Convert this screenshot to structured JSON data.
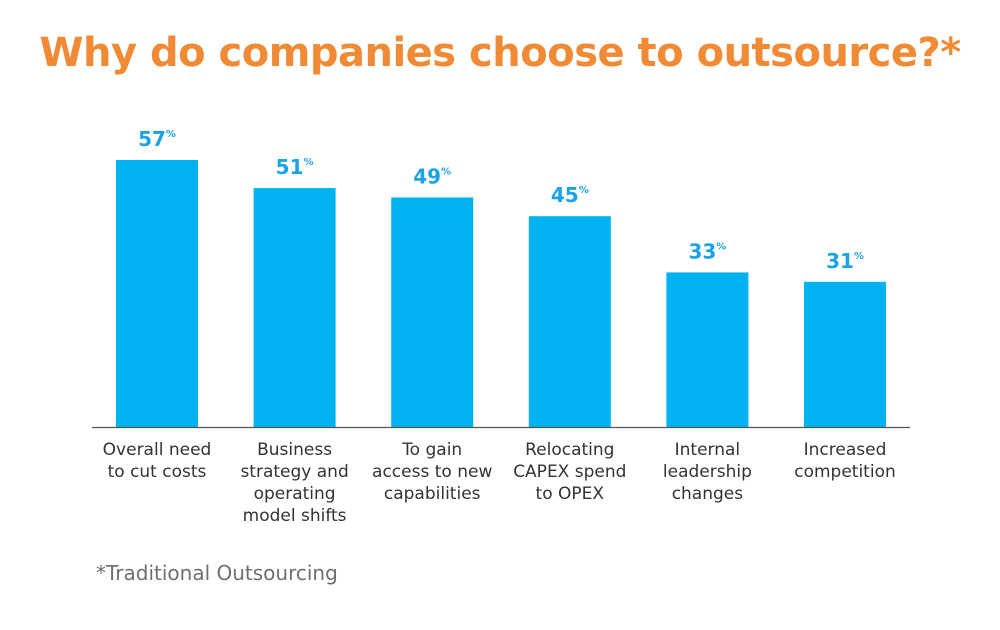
{
  "chart_data": {
    "type": "bar",
    "title": "Why do companies choose to outsource?*",
    "categories": [
      [
        "Overall need",
        "to cut costs"
      ],
      [
        "Business",
        "strategy and",
        "operating",
        "model shifts"
      ],
      [
        "To gain",
        "access to new",
        "capabilities"
      ],
      [
        "Relocating",
        "CAPEX spend",
        "to OPEX"
      ],
      [
        "Internal",
        "leadership",
        "changes"
      ],
      [
        "Increased",
        "competition"
      ]
    ],
    "values": [
      57,
      51,
      49,
      45,
      33,
      31
    ],
    "value_labels": [
      "57",
      "51",
      "49",
      "45",
      "33",
      "31"
    ],
    "value_suffix": "%",
    "xlabel": "",
    "ylabel": "",
    "ylim": [
      0,
      57
    ],
    "grid": false,
    "bar_color": "#00b3f0",
    "label_color": "#1aa3e6"
  },
  "footnote": "*Traditional Outsourcing",
  "colors": {
    "title": "#f08a34",
    "axis": "#555555",
    "text": "#333333",
    "footnote": "#6f6f6f"
  }
}
